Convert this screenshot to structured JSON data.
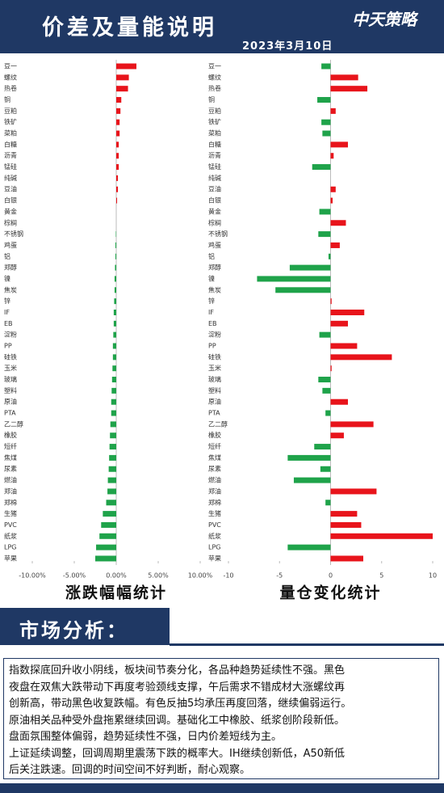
{
  "header": {
    "title": "价差及量能说明",
    "logo": "中天策略",
    "date": "2023年3月10日"
  },
  "chart_data": [
    {
      "type": "bar",
      "orientation": "horizontal",
      "title": "涨跌幅幅统计",
      "categories": [
        "豆一",
        "螺纹",
        "热卷",
        "铜",
        "豆粕",
        "铁矿",
        "菜粕",
        "白糖",
        "沥青",
        "锰硅",
        "纯碱",
        "豆油",
        "白银",
        "黄金",
        "棕榈",
        "不锈钢",
        "鸡蛋",
        "铝",
        "郑醇",
        "镍",
        "焦炭",
        "锌",
        "IF",
        "EB",
        "淀粉",
        "PP",
        "硅铁",
        "玉米",
        "玻璃",
        "塑料",
        "原油",
        "PTA",
        "乙二醇",
        "橡胶",
        "短纤",
        "焦煤",
        "尿素",
        "燃油",
        "郑油",
        "郑棉",
        "生猪",
        "PVC",
        "纸浆",
        "LPG",
        "苹果"
      ],
      "values": [
        2.4,
        1.5,
        1.4,
        0.6,
        0.5,
        0.4,
        0.4,
        0.3,
        0.3,
        0.3,
        0.2,
        0.2,
        0.1,
        0,
        0,
        -0.05,
        -0.1,
        -0.1,
        -0.15,
        -0.2,
        -0.2,
        -0.25,
        -0.3,
        -0.3,
        -0.35,
        -0.4,
        -0.4,
        -0.45,
        -0.5,
        -0.55,
        -0.6,
        -0.6,
        -0.7,
        -0.75,
        -0.8,
        -0.85,
        -0.9,
        -1.0,
        -1.05,
        -1.2,
        -1.6,
        -1.8,
        -2.0,
        -2.4,
        -2.5
      ],
      "positive_color": "#e8141b",
      "negative_color": "#1fa34a",
      "xlim": [
        -10,
        10
      ],
      "xticks": [
        {
          "value": -10,
          "label": "-10.00%"
        },
        {
          "value": -5,
          "label": "-5.00%"
        },
        {
          "value": 0,
          "label": "0.00%"
        },
        {
          "value": 5,
          "label": "5.00%"
        },
        {
          "value": 10,
          "label": "10.00%"
        }
      ]
    },
    {
      "type": "bar",
      "orientation": "horizontal",
      "title": "量仓变化统计",
      "categories": [
        "豆一",
        "螺纹",
        "热卷",
        "铜",
        "豆粕",
        "铁矿",
        "菜粕",
        "白糖",
        "沥青",
        "锰硅",
        "纯碱",
        "豆油",
        "白银",
        "黄金",
        "棕榈",
        "不锈钢",
        "鸡蛋",
        "铝",
        "郑醇",
        "镍",
        "焦炭",
        "锌",
        "IF",
        "EB",
        "淀粉",
        "PP",
        "硅铁",
        "玉米",
        "玻璃",
        "塑料",
        "原油",
        "PTA",
        "乙二醇",
        "橡胶",
        "短纤",
        "焦煤",
        "尿素",
        "燃油",
        "郑油",
        "郑棉",
        "生猪",
        "PVC",
        "纸浆",
        "LPG",
        "苹果"
      ],
      "values": [
        -0.9,
        2.7,
        3.6,
        -1.3,
        0.5,
        -0.9,
        -0.8,
        1.7,
        0.3,
        -1.8,
        0,
        0.5,
        0.2,
        -1.1,
        1.5,
        -1.2,
        0.9,
        -0.2,
        -4.0,
        -7.2,
        -5.4,
        0.1,
        3.3,
        1.7,
        -1.1,
        2.6,
        6.0,
        0.1,
        -1.2,
        -0.8,
        1.7,
        -0.5,
        4.2,
        1.3,
        -1.6,
        -4.2,
        -1.0,
        -3.6,
        4.5,
        -0.5,
        2.6,
        3.0,
        10.0,
        -4.2,
        3.2
      ],
      "positive_color": "#e8141b",
      "negative_color": "#1fa34a",
      "xlim": [
        -10,
        10
      ],
      "xticks": [
        -10,
        -5,
        0,
        5,
        10
      ]
    }
  ],
  "analysis": {
    "title": "市场分析：",
    "lines": [
      "指数探底回升收小阴线，板块间节奏分化，各品种趋势延续性不强。黑色",
      "夜盘在双焦大跌带动下再度考验颈线支撑，午后需求不错成材大涨螺纹再",
      "创新高，带动黑色收复跌幅。有色反抽5均承压再度回落，继续偏弱运行。",
      "原油相关品种受外盘拖累继续回调。基础化工中橡胶、纸浆创阶段新低。",
      "盘面氛围整体偏弱，趋势延续性不强，日内价差短线为主。",
      "上证延续调整，回调周期里震荡下跌的概率大。IH继续创新低，A50新低",
      "后关注跌速。回调的时间空间不好判断，耐心观察。"
    ]
  }
}
